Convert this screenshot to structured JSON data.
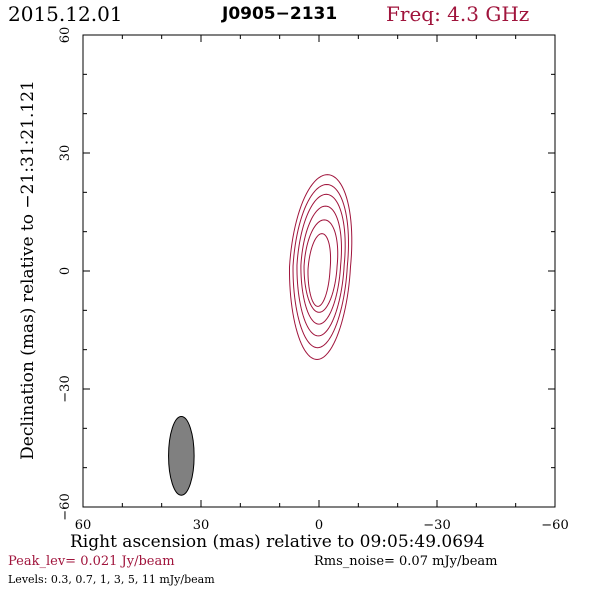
{
  "header": {
    "date": "2015.12.01",
    "source": "J0905−2131",
    "frequency": "Freq: 4.3 GHz"
  },
  "footer": {
    "peak_level": "Peak_lev=  0.021 Jy/beam",
    "rms_noise": "Rms_noise= 0.07 mJy/beam",
    "levels": "Levels: 0.3,  0.7,    1,    3,    5,   11 mJy/beam"
  },
  "colors": {
    "contour": "#a0143c",
    "beam_fill": "#808080",
    "frame": "#000000"
  },
  "chart_data": {
    "type": "contour",
    "xlabel": "Right ascension (mas) relative to 09:05:49.0694",
    "ylabel": "Declination (mas) relative to −21:31:21.121",
    "xlim": [
      60,
      -60
    ],
    "ylim": [
      -60,
      60
    ],
    "x_ticks": [
      60,
      30,
      0,
      -30,
      -60
    ],
    "y_ticks": [
      -60,
      -30,
      0,
      30,
      60
    ],
    "x_tick_labels": [
      "60",
      "30",
      "0",
      "−30",
      "−60"
    ],
    "y_tick_labels": [
      "−60",
      "−30",
      "0",
      "30",
      "60"
    ],
    "contour_levels_mJy_per_beam": [
      0.3,
      0.7,
      1,
      3,
      5,
      11
    ],
    "peak_Jy_per_beam": 0.021,
    "rms_noise_mJy_per_beam": 0.07,
    "contours": [
      {
        "level": 0.3,
        "x_range": [
          -8.0,
          7.5
        ],
        "y_range": [
          -22.5,
          24.5
        ]
      },
      {
        "level": 0.7,
        "x_range": [
          -7.2,
          6.6
        ],
        "y_range": [
          -19.5,
          22.0
        ]
      },
      {
        "level": 1,
        "x_range": [
          -6.4,
          5.6
        ],
        "y_range": [
          -16.5,
          19.5
        ]
      },
      {
        "level": 3,
        "x_range": [
          -5.5,
          4.6
        ],
        "y_range": [
          -13.5,
          16.5
        ]
      },
      {
        "level": 5,
        "x_range": [
          -4.6,
          3.8
        ],
        "y_range": [
          -10.5,
          13.0
        ]
      },
      {
        "level": 11,
        "x_range": [
          -2.8,
          2.8
        ],
        "y_range": [
          -9.0,
          9.5
        ]
      }
    ],
    "beam": {
      "center": [
        35,
        -47
      ],
      "major_mas": 20,
      "minor_mas": 6.5,
      "pa_deg": 0
    }
  }
}
